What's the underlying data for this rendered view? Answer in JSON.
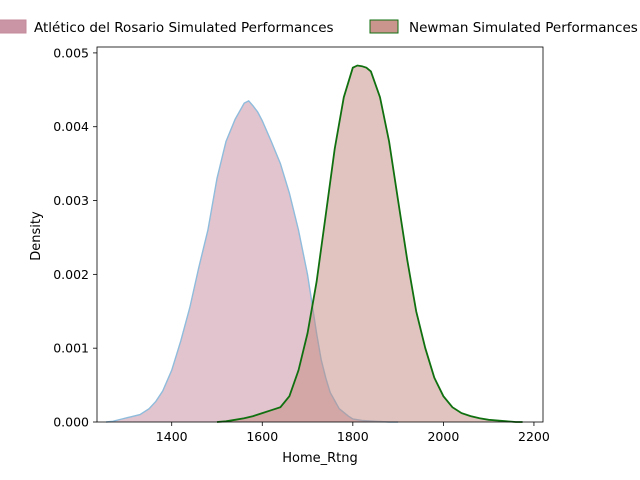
{
  "chart_data": {
    "type": "area",
    "title": "",
    "xlabel": "Home_Rtng",
    "ylabel": "Density",
    "xlim": [
      1235,
      2220
    ],
    "ylim": [
      0,
      0.00508
    ],
    "xticks": [
      1400,
      1600,
      1800,
      2000,
      2200
    ],
    "yticks": [
      0.0,
      0.001,
      0.002,
      0.003,
      0.004,
      0.005
    ],
    "ytick_labels": [
      "0.000",
      "0.001",
      "0.002",
      "0.003",
      "0.004",
      "0.005"
    ],
    "grid": false,
    "legend": "top",
    "series": [
      {
        "name": "Atlético del Rosario Simulated Performances",
        "fill": "#c48a9b",
        "line": "#8fbcdc",
        "fill_opacity": 0.5,
        "x": [
          1255,
          1270,
          1290,
          1310,
          1330,
          1350,
          1365,
          1380,
          1400,
          1420,
          1440,
          1460,
          1480,
          1500,
          1520,
          1540,
          1560,
          1570,
          1580,
          1590,
          1600,
          1620,
          1640,
          1660,
          1680,
          1700,
          1710,
          1720,
          1730,
          1740,
          1750,
          1770,
          1790,
          1800,
          1820,
          1850,
          1880,
          1900
        ],
        "y": [
          0,
          1e-05,
          4e-05,
          7e-05,
          0.0001,
          0.00018,
          0.00028,
          0.00042,
          0.0007,
          0.0011,
          0.00155,
          0.0021,
          0.0026,
          0.0033,
          0.0038,
          0.0041,
          0.00432,
          0.00435,
          0.00428,
          0.0042,
          0.00408,
          0.0038,
          0.0035,
          0.0031,
          0.0026,
          0.002,
          0.0016,
          0.0012,
          0.00085,
          0.0006,
          0.0004,
          0.00018,
          8e-05,
          4e-05,
          2e-05,
          1e-05,
          0,
          0
        ]
      },
      {
        "name": "Newman Simulated Performances",
        "fill": "#c48a80",
        "line": "#107010",
        "fill_opacity": 0.5,
        "x": [
          1500,
          1520,
          1540,
          1560,
          1580,
          1600,
          1620,
          1640,
          1660,
          1680,
          1700,
          1720,
          1740,
          1760,
          1780,
          1800,
          1810,
          1820,
          1830,
          1840,
          1860,
          1880,
          1900,
          1920,
          1940,
          1960,
          1980,
          2000,
          2020,
          2040,
          2060,
          2080,
          2100,
          2120,
          2140,
          2160,
          2175
        ],
        "y": [
          0,
          1e-05,
          3e-05,
          5e-05,
          8e-05,
          0.00012,
          0.00016,
          0.0002,
          0.00035,
          0.0007,
          0.0012,
          0.0019,
          0.0028,
          0.0037,
          0.0044,
          0.0048,
          0.00483,
          0.00482,
          0.0048,
          0.00475,
          0.0044,
          0.0038,
          0.003,
          0.0022,
          0.0015,
          0.001,
          0.0006,
          0.00035,
          0.0002,
          0.00012,
          8e-05,
          5e-05,
          3e-05,
          2e-05,
          1e-05,
          0,
          0
        ]
      }
    ]
  }
}
